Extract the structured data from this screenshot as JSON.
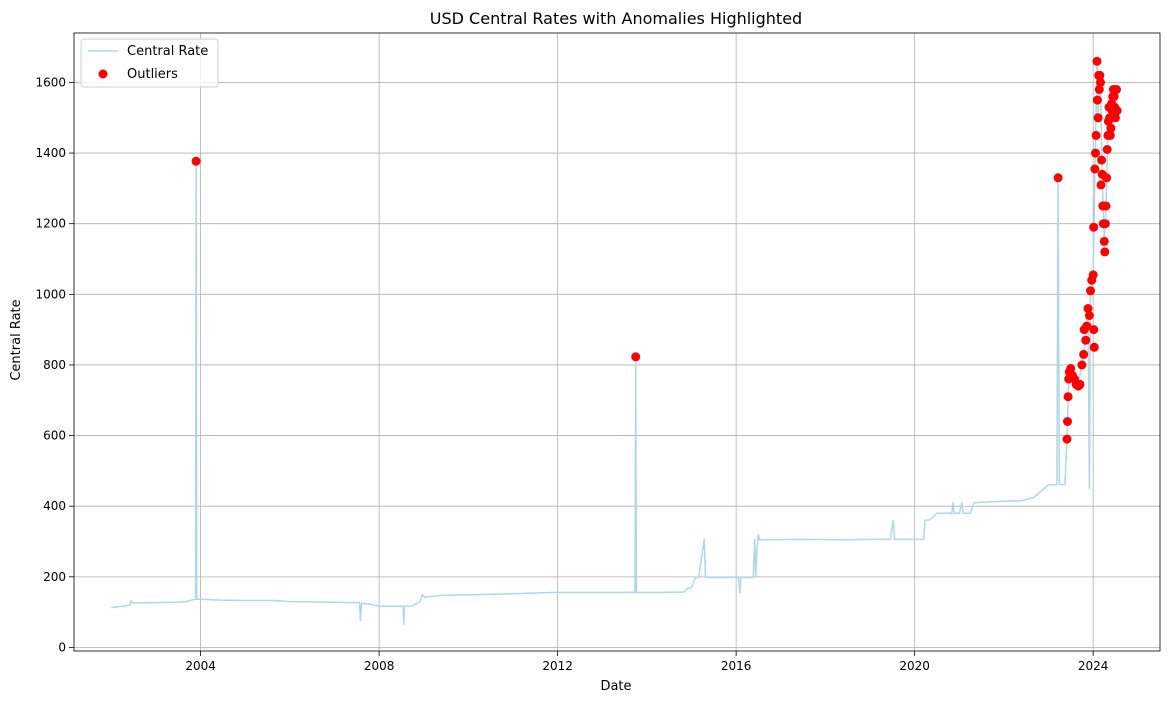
{
  "chart_data": {
    "type": "line",
    "title": "USD Central Rates with Anomalies Highlighted",
    "xlabel": "Date",
    "ylabel": "Central Rate",
    "xlim": [
      "2001-03-01",
      "2025-07-01"
    ],
    "ylim": [
      -10,
      1740
    ],
    "x_ticks": [
      "2004",
      "2008",
      "2012",
      "2016",
      "2020",
      "2024"
    ],
    "y_ticks": [
      0,
      200,
      400,
      600,
      800,
      1000,
      1200,
      1400,
      1600
    ],
    "grid": true,
    "legend": "top-left",
    "colors": {
      "line": "#add8e6",
      "outliers": "#ff0000",
      "grid": "#b0b0b0"
    },
    "series": [
      {
        "name": "Central Rate",
        "kind": "line",
        "points": [
          [
            "2002-01-01",
            113
          ],
          [
            "2002-04-01",
            117
          ],
          [
            "2002-06-01",
            120
          ],
          [
            "2002-06-10",
            132
          ],
          [
            "2002-06-20",
            126
          ],
          [
            "2003-01-01",
            127
          ],
          [
            "2003-06-01",
            128
          ],
          [
            "2003-09-01",
            130
          ],
          [
            "2003-11-20",
            137
          ],
          [
            "2003-11-25",
            1372
          ],
          [
            "2003-11-30",
            137
          ],
          [
            "2004-06-01",
            134
          ],
          [
            "2005-01-01",
            133
          ],
          [
            "2005-09-01",
            133
          ],
          [
            "2006-01-01",
            130
          ],
          [
            "2007-01-01",
            128
          ],
          [
            "2007-06-01",
            127
          ],
          [
            "2007-07-25",
            127
          ],
          [
            "2007-08-01",
            76
          ],
          [
            "2007-08-10",
            125
          ],
          [
            "2007-11-01",
            122
          ],
          [
            "2008-01-01",
            117
          ],
          [
            "2008-07-15",
            117
          ],
          [
            "2008-07-20",
            65
          ],
          [
            "2008-07-25",
            117
          ],
          [
            "2008-10-01",
            118
          ],
          [
            "2008-12-01",
            130
          ],
          [
            "2008-12-20",
            150
          ],
          [
            "2009-01-05",
            143
          ],
          [
            "2009-06-01",
            148
          ],
          [
            "2010-01-01",
            149
          ],
          [
            "2011-01-01",
            152
          ],
          [
            "2011-06-01",
            154
          ],
          [
            "2012-01-01",
            156
          ],
          [
            "2013-01-01",
            156
          ],
          [
            "2013-09-25",
            156
          ],
          [
            "2013-10-01",
            821
          ],
          [
            "2013-10-07",
            156
          ],
          [
            "2014-06-01",
            156
          ],
          [
            "2014-11-01",
            157
          ],
          [
            "2014-12-01",
            168
          ],
          [
            "2015-01-01",
            169
          ],
          [
            "2015-02-01",
            198
          ],
          [
            "2015-03-01",
            198
          ],
          [
            "2015-04-15",
            306
          ],
          [
            "2015-04-25",
            198
          ],
          [
            "2015-12-01",
            198
          ],
          [
            "2016-01-20",
            198
          ],
          [
            "2016-02-01",
            155
          ],
          [
            "2016-02-10",
            198
          ],
          [
            "2016-05-20",
            198
          ],
          [
            "2016-06-01",
            305
          ],
          [
            "2016-06-10",
            200
          ],
          [
            "2016-06-20",
            280
          ],
          [
            "2016-07-01",
            320
          ],
          [
            "2016-07-10",
            305
          ],
          [
            "2016-09-01",
            305
          ],
          [
            "2017-06-01",
            306
          ],
          [
            "2018-06-01",
            305
          ],
          [
            "2019-01-01",
            306
          ],
          [
            "2019-06-15",
            306
          ],
          [
            "2019-07-10",
            360
          ],
          [
            "2019-07-20",
            306
          ],
          [
            "2020-01-01",
            306
          ],
          [
            "2020-03-15",
            306
          ],
          [
            "2020-03-25",
            360
          ],
          [
            "2020-05-01",
            361
          ],
          [
            "2020-07-01",
            380
          ],
          [
            "2020-09-01",
            380
          ],
          [
            "2020-11-01",
            380
          ],
          [
            "2020-11-10",
            410
          ],
          [
            "2020-11-20",
            380
          ],
          [
            "2021-01-01",
            380
          ],
          [
            "2021-01-20",
            410
          ],
          [
            "2021-02-01",
            380
          ],
          [
            "2021-04-01",
            380
          ],
          [
            "2021-05-01",
            410
          ],
          [
            "2021-07-01",
            411
          ],
          [
            "2022-01-01",
            414
          ],
          [
            "2022-06-01",
            416
          ],
          [
            "2022-09-01",
            425
          ],
          [
            "2023-01-01",
            461
          ],
          [
            "2023-03-10",
            461
          ],
          [
            "2023-03-20",
            1330
          ],
          [
            "2023-03-30",
            461
          ],
          [
            "2023-05-15",
            461
          ],
          [
            "2023-06-01",
            590
          ],
          [
            "2023-06-15",
            760
          ],
          [
            "2023-07-01",
            780
          ],
          [
            "2023-08-01",
            760
          ],
          [
            "2023-09-01",
            750
          ],
          [
            "2023-10-01",
            800
          ],
          [
            "2023-11-01",
            870
          ],
          [
            "2023-11-20",
            960
          ],
          [
            "2023-12-01",
            450
          ],
          [
            "2023-12-10",
            1000
          ],
          [
            "2024-01-01",
            1050
          ],
          [
            "2024-01-15",
            1350
          ],
          [
            "2024-02-01",
            1660
          ],
          [
            "2024-02-10",
            1500
          ],
          [
            "2024-02-20",
            1620
          ],
          [
            "2024-03-01",
            1600
          ],
          [
            "2024-03-15",
            1340
          ],
          [
            "2024-04-01",
            1150
          ],
          [
            "2024-04-15",
            1250
          ],
          [
            "2024-05-01",
            1450
          ],
          [
            "2024-05-15",
            1500
          ],
          [
            "2024-06-01",
            1540
          ],
          [
            "2024-06-15",
            1580
          ],
          [
            "2024-07-01",
            1500
          ],
          [
            "2024-07-15",
            1520
          ]
        ]
      },
      {
        "name": "Outliers",
        "kind": "scatter",
        "points": [
          [
            "2003-11-25",
            1377
          ],
          [
            "2013-10-01",
            823
          ],
          [
            "2023-03-20",
            1330
          ],
          [
            "2023-06-01",
            590
          ],
          [
            "2023-06-05",
            640
          ],
          [
            "2023-06-10",
            710
          ],
          [
            "2023-06-15",
            760
          ],
          [
            "2023-06-20",
            780
          ],
          [
            "2023-07-01",
            790
          ],
          [
            "2023-07-15",
            770
          ],
          [
            "2023-08-01",
            760
          ],
          [
            "2023-08-15",
            745
          ],
          [
            "2023-09-01",
            740
          ],
          [
            "2023-09-15",
            745
          ],
          [
            "2023-10-01",
            800
          ],
          [
            "2023-10-15",
            830
          ],
          [
            "2023-10-20",
            900
          ],
          [
            "2023-11-01",
            870
          ],
          [
            "2023-11-10",
            910
          ],
          [
            "2023-11-20",
            960
          ],
          [
            "2023-12-01",
            940
          ],
          [
            "2023-12-10",
            1010
          ],
          [
            "2023-12-20",
            1040
          ],
          [
            "2024-01-01",
            1055
          ],
          [
            "2024-01-05",
            1190
          ],
          [
            "2024-01-05",
            900
          ],
          [
            "2024-01-10",
            850
          ],
          [
            "2024-01-15",
            1355
          ],
          [
            "2024-01-20",
            1400
          ],
          [
            "2024-01-25",
            1450
          ],
          [
            "2024-02-01",
            1660
          ],
          [
            "2024-02-05",
            1550
          ],
          [
            "2024-02-10",
            1500
          ],
          [
            "2024-02-15",
            1620
          ],
          [
            "2024-02-20",
            1580
          ],
          [
            "2024-02-25",
            1620
          ],
          [
            "2024-03-01",
            1600
          ],
          [
            "2024-03-05",
            1310
          ],
          [
            "2024-03-10",
            1380
          ],
          [
            "2024-03-15",
            1340
          ],
          [
            "2024-03-20",
            1250
          ],
          [
            "2024-03-25",
            1200
          ],
          [
            "2024-04-01",
            1150
          ],
          [
            "2024-04-05",
            1120
          ],
          [
            "2024-04-10",
            1200
          ],
          [
            "2024-04-15",
            1250
          ],
          [
            "2024-04-20",
            1330
          ],
          [
            "2024-04-25",
            1410
          ],
          [
            "2024-05-01",
            1450
          ],
          [
            "2024-05-05",
            1490
          ],
          [
            "2024-05-10",
            1530
          ],
          [
            "2024-05-15",
            1500
          ],
          [
            "2024-05-20",
            1450
          ],
          [
            "2024-05-25",
            1470
          ],
          [
            "2024-06-01",
            1540
          ],
          [
            "2024-06-05",
            1520
          ],
          [
            "2024-06-10",
            1560
          ],
          [
            "2024-06-15",
            1580
          ],
          [
            "2024-06-20",
            1560
          ],
          [
            "2024-06-25",
            1530
          ],
          [
            "2024-07-01",
            1500
          ],
          [
            "2024-07-10",
            1580
          ],
          [
            "2024-07-15",
            1520
          ]
        ]
      }
    ]
  }
}
